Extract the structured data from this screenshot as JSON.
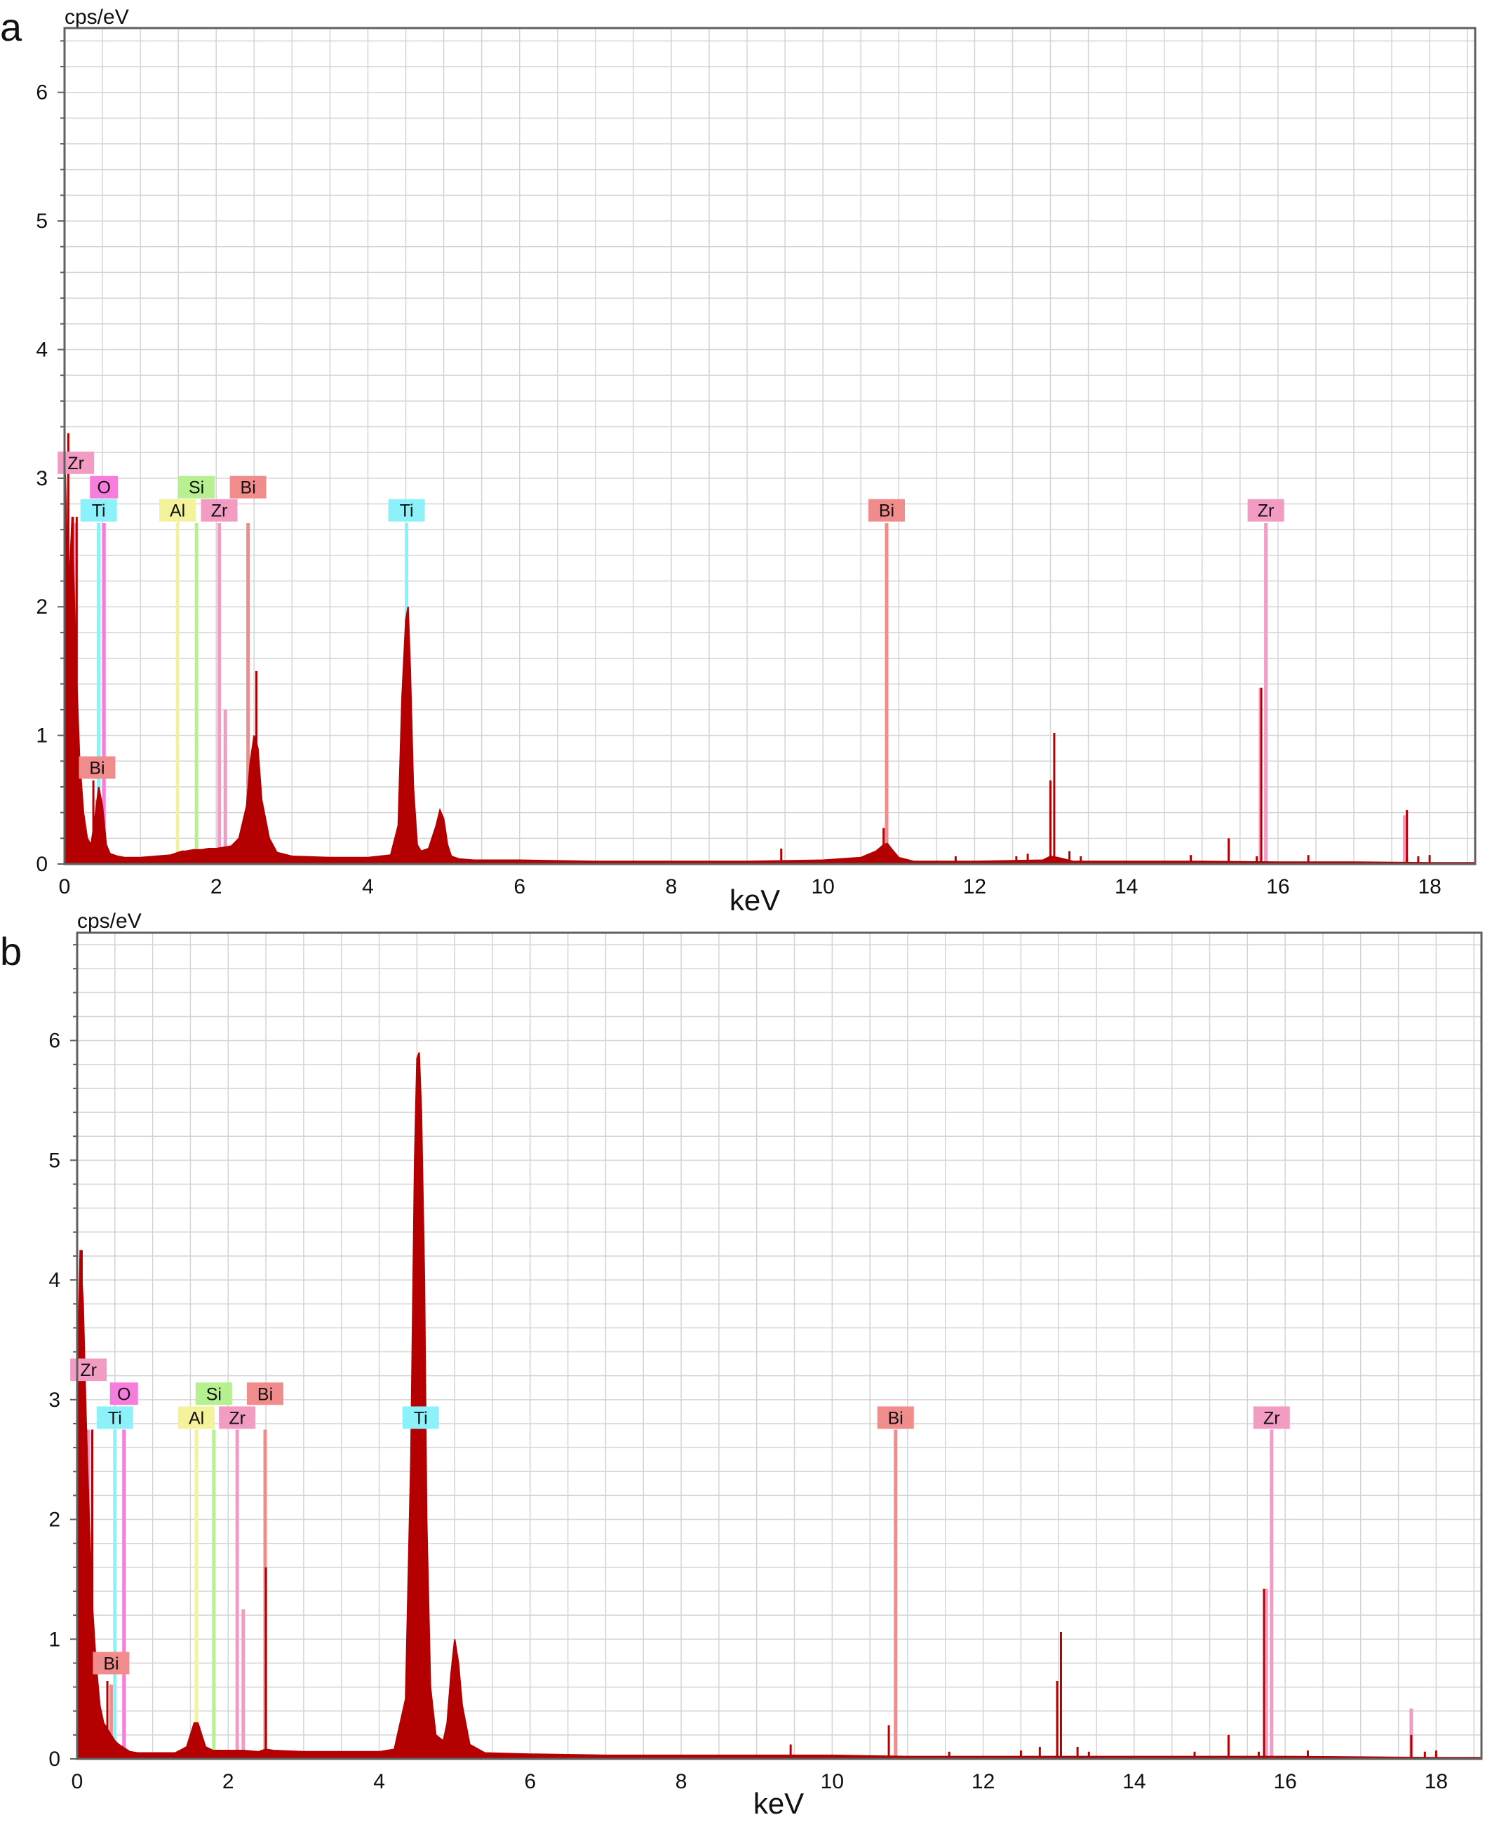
{
  "panels": [
    {
      "letter": "a"
    },
    {
      "letter": "b"
    }
  ],
  "colors": {
    "spectrum": "#b40000",
    "grid": "#d4d4d4",
    "frame": "#606060",
    "Zr": "#f29cc4",
    "O": "#f77ddc",
    "Ti": "#8cf1f8",
    "Al": "#f4f29a",
    "Si": "#b6f090",
    "Bi": "#f08c8c"
  },
  "chart_data": [
    {
      "type": "area",
      "panel": "a",
      "ylabel": "cps/eV",
      "xlabel": "keV",
      "xlim": [
        0,
        18.6
      ],
      "ylim": [
        0,
        6.5
      ],
      "xticks": [
        "0",
        "2",
        "4",
        "6",
        "8",
        "10",
        "12",
        "14",
        "16",
        "18"
      ],
      "yticks": [
        "0",
        "1",
        "2",
        "3",
        "4",
        "5",
        "6"
      ],
      "grid": true,
      "spectrum": {
        "x": [
          0,
          0.05,
          0.1,
          0.15,
          0.2,
          0.25,
          0.3,
          0.35,
          0.4,
          0.45,
          0.5,
          0.55,
          0.6,
          0.7,
          0.8,
          1.0,
          1.2,
          1.4,
          1.5,
          1.55,
          1.6,
          1.7,
          1.8,
          1.9,
          2.0,
          2.1,
          2.2,
          2.3,
          2.4,
          2.45,
          2.5,
          2.55,
          2.6,
          2.7,
          2.8,
          3.0,
          3.5,
          4.0,
          4.3,
          4.4,
          4.45,
          4.5,
          4.53,
          4.56,
          4.6,
          4.65,
          4.7,
          4.8,
          4.9,
          4.95,
          5.0,
          5.05,
          5.1,
          5.2,
          5.4,
          6.0,
          7.0,
          8.0,
          9.0,
          10.0,
          10.5,
          10.7,
          10.8,
          10.85,
          10.9,
          11.0,
          11.2,
          12.0,
          12.9,
          13.0,
          13.1,
          13.3,
          14.0,
          15.0,
          16.0,
          17.0,
          18.0,
          18.6
        ],
        "y": [
          3.3,
          2.0,
          2.7,
          1.6,
          0.8,
          0.4,
          0.2,
          0.15,
          0.35,
          0.6,
          0.45,
          0.15,
          0.08,
          0.06,
          0.05,
          0.05,
          0.06,
          0.07,
          0.09,
          0.1,
          0.1,
          0.11,
          0.11,
          0.12,
          0.12,
          0.13,
          0.14,
          0.2,
          0.45,
          0.8,
          1.0,
          0.9,
          0.5,
          0.2,
          0.09,
          0.06,
          0.05,
          0.05,
          0.07,
          0.3,
          1.3,
          1.9,
          2.0,
          1.5,
          0.6,
          0.15,
          0.1,
          0.12,
          0.3,
          0.42,
          0.35,
          0.15,
          0.06,
          0.04,
          0.03,
          0.03,
          0.02,
          0.02,
          0.02,
          0.03,
          0.05,
          0.1,
          0.15,
          0.16,
          0.12,
          0.05,
          0.02,
          0.02,
          0.03,
          0.06,
          0.05,
          0.02,
          0.02,
          0.02,
          0.015,
          0.015,
          0.01,
          0.01
        ]
      },
      "spikes": [
        {
          "x": 0.05,
          "y": 3.35
        },
        {
          "x": 0.11,
          "y": 2.7
        },
        {
          "x": 0.16,
          "y": 2.7
        },
        {
          "x": 0.38,
          "y": 0.65
        },
        {
          "x": 2.53,
          "y": 1.5
        },
        {
          "x": 9.45,
          "y": 0.12
        },
        {
          "x": 10.8,
          "y": 0.28
        },
        {
          "x": 11.75,
          "y": 0.06
        },
        {
          "x": 12.55,
          "y": 0.06
        },
        {
          "x": 12.7,
          "y": 0.08
        },
        {
          "x": 13.0,
          "y": 0.65
        },
        {
          "x": 13.05,
          "y": 1.02
        },
        {
          "x": 13.25,
          "y": 0.1
        },
        {
          "x": 13.4,
          "y": 0.06
        },
        {
          "x": 14.85,
          "y": 0.07
        },
        {
          "x": 15.35,
          "y": 0.2
        },
        {
          "x": 15.72,
          "y": 0.06
        },
        {
          "x": 15.78,
          "y": 1.37
        },
        {
          "x": 16.4,
          "y": 0.07
        },
        {
          "x": 17.7,
          "y": 0.42
        },
        {
          "x": 17.85,
          "y": 0.06
        },
        {
          "x": 18.0,
          "y": 0.07
        }
      ],
      "markers": [
        {
          "element": "Zr",
          "x": 0.15,
          "y": 2.65,
          "label_y": 3.12
        },
        {
          "element": "O",
          "x": 0.52,
          "y": 2.65,
          "label_y": 2.93
        },
        {
          "element": "Ti",
          "x": 0.45,
          "y": 2.65,
          "label_y": 2.75
        },
        {
          "element": "Bi",
          "x": 0.43,
          "y": 0.5,
          "label_y": 0.75
        },
        {
          "element": "Al",
          "x": 1.49,
          "y": 2.65,
          "label_y": 2.75
        },
        {
          "element": "Si",
          "x": 1.74,
          "y": 2.65,
          "label_y": 2.93
        },
        {
          "element": "Zr",
          "x": 2.04,
          "y": 2.65,
          "label_y": 2.75
        },
        {
          "element": "Bi",
          "x": 2.42,
          "y": 2.65,
          "label_y": 2.93
        },
        {
          "element": "Zr",
          "x": 2.12,
          "y": 1.2,
          "label_y": null
        },
        {
          "element": "Ti",
          "x": 4.51,
          "y": 2.65,
          "label_y": 2.75
        },
        {
          "element": "Ti",
          "x": 4.93,
          "y": 0.35,
          "label_y": null
        },
        {
          "element": "Bi",
          "x": 10.84,
          "y": 2.65,
          "label_y": 2.75
        },
        {
          "element": "Zr",
          "x": 15.77,
          "y": 1.37,
          "label_y": null
        },
        {
          "element": "Zr",
          "x": 15.84,
          "y": 2.65,
          "label_y": 2.75
        },
        {
          "element": "Zr",
          "x": 17.67,
          "y": 0.38,
          "label_y": null
        }
      ]
    },
    {
      "type": "area",
      "panel": "b",
      "ylabel": "cps/eV",
      "xlabel": "keV",
      "xlim": [
        0,
        18.6
      ],
      "ylim": [
        0,
        6.9
      ],
      "xticks": [
        "0",
        "2",
        "4",
        "6",
        "8",
        "10",
        "12",
        "14",
        "16",
        "18"
      ],
      "yticks": [
        "0",
        "1",
        "2",
        "3",
        "4",
        "5",
        "6"
      ],
      "grid": true,
      "spectrum": {
        "x": [
          0,
          0.04,
          0.08,
          0.12,
          0.16,
          0.2,
          0.25,
          0.3,
          0.35,
          0.4,
          0.45,
          0.5,
          0.55,
          0.6,
          0.7,
          0.8,
          1.0,
          1.3,
          1.45,
          1.5,
          1.55,
          1.6,
          1.65,
          1.7,
          1.8,
          2.0,
          2.2,
          2.4,
          2.5,
          2.6,
          3.0,
          3.5,
          4.0,
          4.2,
          4.35,
          4.42,
          4.47,
          4.5,
          4.53,
          4.56,
          4.6,
          4.63,
          4.68,
          4.75,
          4.85,
          4.9,
          4.95,
          5.0,
          5.05,
          5.1,
          5.2,
          5.4,
          6.0,
          7.0,
          8.0,
          9.0,
          10.0,
          11.0,
          12.0,
          13.0,
          14.0,
          15.0,
          16.0,
          17.0,
          18.0,
          18.6
        ],
        "y": [
          3.0,
          4.25,
          3.8,
          2.8,
          2.0,
          1.3,
          0.8,
          0.45,
          0.3,
          0.25,
          0.2,
          0.15,
          0.12,
          0.1,
          0.06,
          0.05,
          0.05,
          0.05,
          0.1,
          0.2,
          0.3,
          0.3,
          0.2,
          0.1,
          0.07,
          0.07,
          0.07,
          0.06,
          0.08,
          0.07,
          0.06,
          0.06,
          0.06,
          0.08,
          0.5,
          2.5,
          5.0,
          5.85,
          5.9,
          5.4,
          4.0,
          2.0,
          0.6,
          0.2,
          0.15,
          0.3,
          0.7,
          1.0,
          0.8,
          0.45,
          0.12,
          0.05,
          0.04,
          0.03,
          0.03,
          0.03,
          0.03,
          0.02,
          0.02,
          0.02,
          0.02,
          0.02,
          0.02,
          0.015,
          0.01,
          0.01
        ]
      },
      "spikes": [
        {
          "x": 0.06,
          "y": 4.25
        },
        {
          "x": 0.12,
          "y": 2.75
        },
        {
          "x": 0.2,
          "y": 2.75
        },
        {
          "x": 0.4,
          "y": 0.65
        },
        {
          "x": 2.5,
          "y": 1.6
        },
        {
          "x": 9.45,
          "y": 0.12
        },
        {
          "x": 10.75,
          "y": 0.28
        },
        {
          "x": 11.55,
          "y": 0.06
        },
        {
          "x": 12.5,
          "y": 0.07
        },
        {
          "x": 12.75,
          "y": 0.1
        },
        {
          "x": 12.98,
          "y": 0.65
        },
        {
          "x": 13.03,
          "y": 1.06
        },
        {
          "x": 13.25,
          "y": 0.1
        },
        {
          "x": 13.4,
          "y": 0.06
        },
        {
          "x": 14.8,
          "y": 0.06
        },
        {
          "x": 15.25,
          "y": 0.2
        },
        {
          "x": 15.65,
          "y": 0.06
        },
        {
          "x": 15.72,
          "y": 1.42
        },
        {
          "x": 16.3,
          "y": 0.07
        },
        {
          "x": 17.67,
          "y": 0.2
        },
        {
          "x": 17.85,
          "y": 0.06
        },
        {
          "x": 18.0,
          "y": 0.07
        }
      ],
      "markers": [
        {
          "element": "Zr",
          "x": 0.15,
          "y": 2.75,
          "label_y": 3.25
        },
        {
          "element": "O",
          "x": 0.62,
          "y": 2.75,
          "label_y": 3.05
        },
        {
          "element": "Ti",
          "x": 0.5,
          "y": 2.75,
          "label_y": 2.85
        },
        {
          "element": "Bi",
          "x": 0.45,
          "y": 0.62,
          "label_y": 0.8
        },
        {
          "element": "Al",
          "x": 1.58,
          "y": 2.75,
          "label_y": 2.85
        },
        {
          "element": "Si",
          "x": 1.81,
          "y": 2.75,
          "label_y": 3.05
        },
        {
          "element": "Zr",
          "x": 2.12,
          "y": 2.75,
          "label_y": 2.85
        },
        {
          "element": "Bi",
          "x": 2.49,
          "y": 2.75,
          "label_y": 3.05
        },
        {
          "element": "Zr",
          "x": 2.2,
          "y": 1.25,
          "label_y": null
        },
        {
          "element": "Ti",
          "x": 4.55,
          "y": 2.75,
          "label_y": 2.85
        },
        {
          "element": "Ti",
          "x": 4.95,
          "y": 0.35,
          "label_y": null
        },
        {
          "element": "Bi",
          "x": 10.84,
          "y": 2.75,
          "label_y": 2.85
        },
        {
          "element": "Zr",
          "x": 15.75,
          "y": 1.42,
          "label_y": null
        },
        {
          "element": "Zr",
          "x": 15.82,
          "y": 2.75,
          "label_y": 2.85
        },
        {
          "element": "Zr",
          "x": 17.67,
          "y": 0.42,
          "label_y": null
        }
      ]
    }
  ]
}
